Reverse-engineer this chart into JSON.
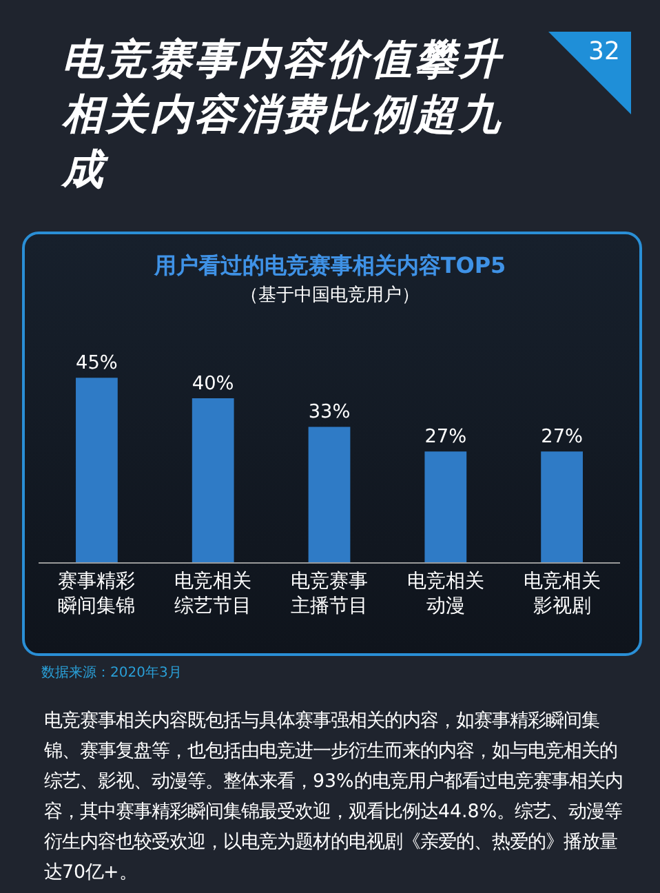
{
  "chart_data": {
    "type": "bar",
    "title": "用户看过的电竞赛事相关内容TOP5",
    "subtitle": "（基于中国电竞用户）",
    "categories": [
      "赛事精彩瞬间集锦",
      "电竞相关综艺节目",
      "电竞赛事主播节目",
      "电竞相关动漫",
      "电竞相关影视剧"
    ],
    "values": [
      45,
      40,
      33,
      27,
      27
    ],
    "value_labels": [
      "45%",
      "40%",
      "33%",
      "27%",
      "27%"
    ],
    "color": "#2f7bc6",
    "grid": false,
    "annotations": [
      "电竞赛事内容价值攀升相关内容消费比例超九成",
      "32",
      "数据来源：2020年3月",
      "电竞赛事相关内容既包括与具体赛事强相关的内容，如赛事精彩瞬间集锦、赛事复盘等，也包括由电竞进一步衍生而来的内容，如与电竞相关的综艺、影视、动漫等。整体来看，93%的电竞用户都看过电竞赛事相关内容，其中赛事精彩瞬间集锦最受欢迎，观看比例达44.8%。综艺、动漫等衍生内容也较受欢迎，以电竞为题材的电视剧《亲爱的、热爱的》播放量达70亿+。"
    ]
  }
}
